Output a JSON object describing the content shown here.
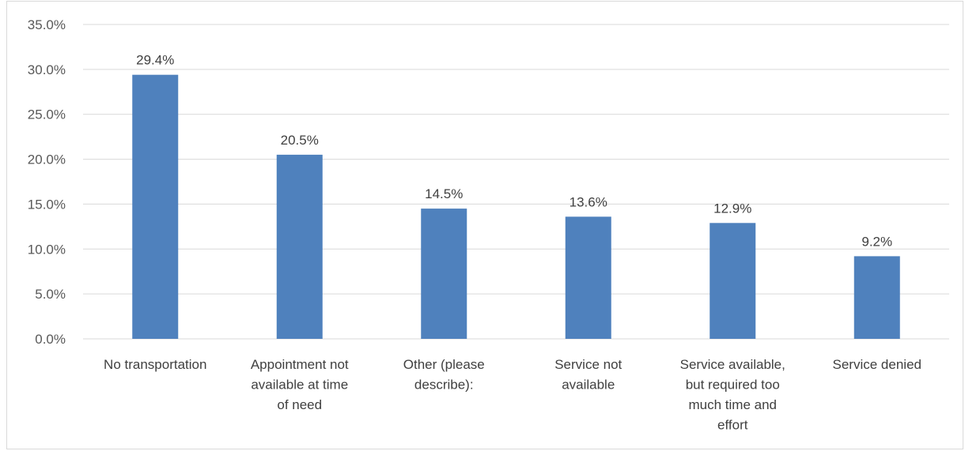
{
  "chart_data": {
    "type": "bar",
    "categories": [
      "No transportation",
      "Appointment not available at time of need",
      "Other (please describe):",
      "Service not available",
      "Service available, but required too much time and effort",
      "Service denied"
    ],
    "category_lines": [
      [
        "No transportation"
      ],
      [
        "Appointment not",
        "available at time",
        "of need"
      ],
      [
        "Other (please",
        "describe):"
      ],
      [
        "Service not",
        "available"
      ],
      [
        "Service available,",
        "but required too",
        "much time and",
        "effort"
      ],
      [
        "Service denied"
      ]
    ],
    "values": [
      29.4,
      20.5,
      14.5,
      13.6,
      12.9,
      9.2
    ],
    "data_labels": [
      "29.4%",
      "20.5%",
      "14.5%",
      "13.6%",
      "12.9%",
      "9.2%"
    ],
    "y_ticks": [
      0,
      5,
      10,
      15,
      20,
      25,
      30,
      35
    ],
    "y_tick_labels": [
      "0.0%",
      "5.0%",
      "10.0%",
      "15.0%",
      "20.0%",
      "25.0%",
      "30.0%",
      "35.0%"
    ],
    "ylim": [
      0,
      35
    ],
    "title": "",
    "xlabel": "",
    "ylabel": "",
    "grid": true,
    "legend": "none",
    "bar_color": "#4f81bd",
    "grid_color": "#d9d9d9"
  }
}
